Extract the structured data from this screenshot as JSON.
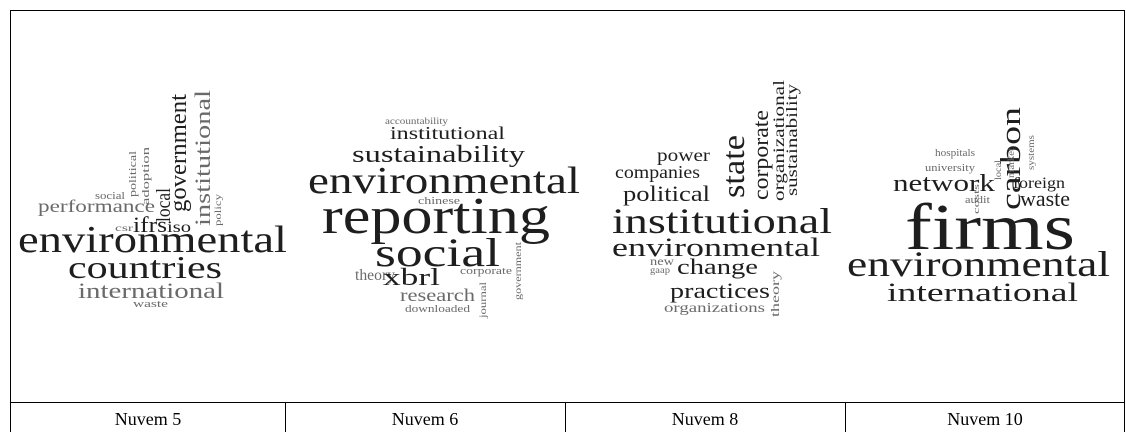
{
  "clouds": [
    {
      "caption": "Nuvem 5",
      "words": [
        "environmental",
        "countries",
        "international",
        "performance",
        "ifrs",
        "iso",
        "waste",
        "local",
        "government",
        "institutional",
        "political",
        "adoption",
        "social",
        "policy",
        "csr"
      ]
    },
    {
      "caption": "Nuvem 6",
      "words": [
        "accountability",
        "institutional",
        "sustainability",
        "environmental",
        "reporting",
        "social",
        "chinese",
        "theory",
        "xbrl",
        "corporate",
        "research",
        "downloaded",
        "journal",
        "government"
      ]
    },
    {
      "caption": "Nuvem 8",
      "words": [
        "power",
        "companies",
        "political",
        "state",
        "corporate",
        "organizational",
        "sustainability",
        "institutional",
        "environmental",
        "new",
        "gaap",
        "change",
        "practices",
        "organizations",
        "theory"
      ]
    },
    {
      "caption": "Nuvem 10",
      "words": [
        "hospitals",
        "university",
        "carbon",
        "network",
        "foreign",
        "waste",
        "firms",
        "environmental",
        "international",
        "audit",
        "costs",
        "local",
        "market",
        "systems"
      ]
    }
  ]
}
